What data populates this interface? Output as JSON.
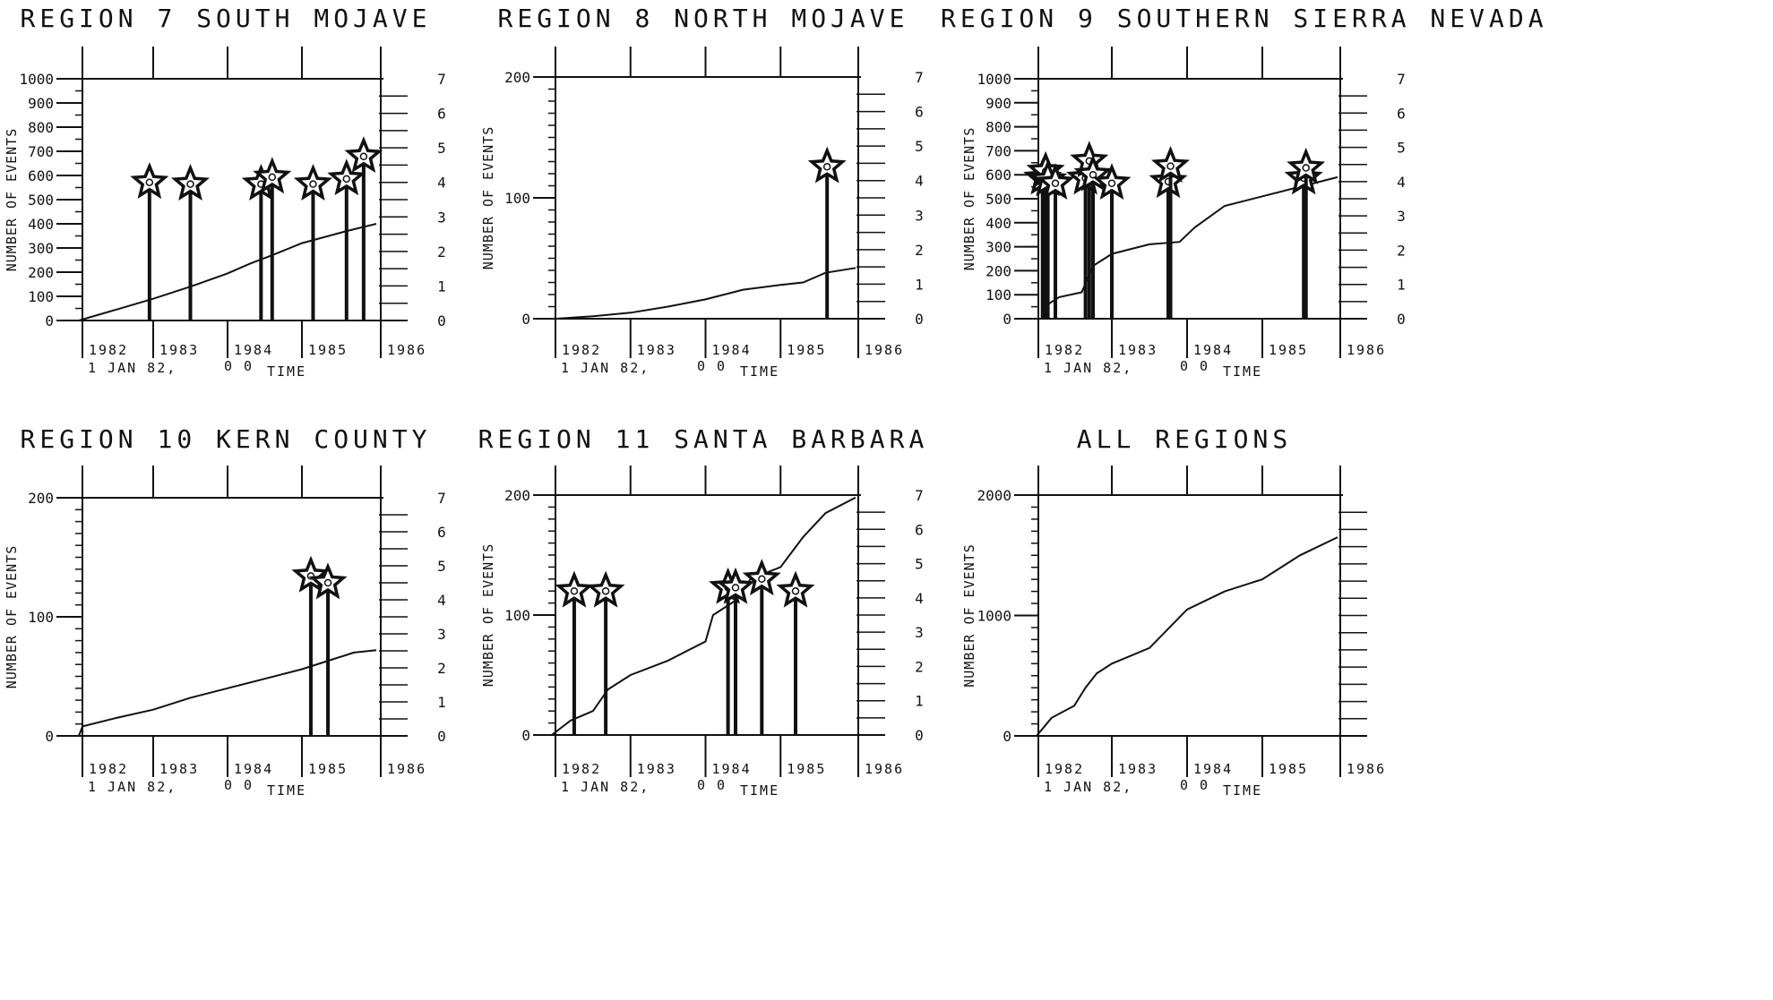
{
  "chart_data": [
    {
      "type": "line",
      "title": "REGION 7 SOUTH MOJAVE",
      "ylabel": "NUMBER OF EVENTS",
      "xlabel": "TIME",
      "start_label": "1 JAN 82,",
      "start_time": "0 0",
      "xlim": [
        1982,
        1986
      ],
      "ylim": [
        0,
        1000
      ],
      "y_ticks": [
        0,
        100,
        200,
        300,
        400,
        500,
        600,
        700,
        800,
        900,
        1000
      ],
      "x_ticks": [
        1982,
        1983,
        1984,
        1985,
        1986
      ],
      "mag_ticks": [
        0,
        1,
        2,
        3,
        4,
        5,
        6,
        7
      ],
      "mag_lim": [
        0,
        7
      ],
      "series": [
        {
          "x": [
            1982.0,
            1982.5,
            1983.0,
            1983.5,
            1984.0,
            1984.3,
            1984.6,
            1985.0,
            1985.3,
            1985.6,
            1986.0
          ],
          "values": [
            0,
            45,
            90,
            140,
            195,
            235,
            270,
            320,
            345,
            370,
            400
          ]
        }
      ],
      "events": [
        {
          "x": 1982.95,
          "magnitude": 4.0
        },
        {
          "x": 1983.5,
          "magnitude": 3.95
        },
        {
          "x": 1984.45,
          "magnitude": 3.95
        },
        {
          "x": 1984.6,
          "magnitude": 4.15
        },
        {
          "x": 1985.15,
          "magnitude": 3.95
        },
        {
          "x": 1985.6,
          "magnitude": 4.1
        },
        {
          "x": 1985.83,
          "magnitude": 4.75
        }
      ]
    },
    {
      "type": "line",
      "title": "REGION 8 NORTH MOJAVE",
      "ylabel": "NUMBER OF EVENTS",
      "xlabel": "TIME",
      "start_label": "1 JAN 82,",
      "start_time": "0 0",
      "xlim": [
        1982,
        1986
      ],
      "ylim": [
        0,
        200
      ],
      "y_ticks": [
        0,
        100,
        200
      ],
      "x_ticks": [
        1982,
        1983,
        1984,
        1985,
        1986
      ],
      "mag_ticks": [
        0,
        1,
        2,
        3,
        4,
        5,
        6,
        7
      ],
      "mag_lim": [
        0,
        7
      ],
      "series": [
        {
          "x": [
            1982.0,
            1982.5,
            1983.0,
            1983.5,
            1984.0,
            1984.5,
            1985.0,
            1985.3,
            1985.6,
            1986.0
          ],
          "values": [
            0,
            2,
            5,
            10,
            16,
            24,
            28,
            30,
            38,
            42
          ]
        }
      ],
      "events": [
        {
          "x": 1985.62,
          "magnitude": 4.4
        }
      ]
    },
    {
      "type": "line",
      "title": "REGION 9 SOUTHERN SIERRA NEVADA",
      "ylabel": "NUMBER OF EVENTS",
      "xlabel": "TIME",
      "start_label": "1 JAN 82,",
      "start_time": "0 0",
      "xlim": [
        1982,
        1986
      ],
      "ylim": [
        0,
        1000
      ],
      "y_ticks": [
        0,
        100,
        200,
        300,
        400,
        500,
        600,
        700,
        800,
        900,
        1000
      ],
      "x_ticks": [
        1982,
        1983,
        1984,
        1985,
        1986
      ],
      "mag_ticks": [
        0,
        1,
        2,
        3,
        4,
        5,
        6,
        7
      ],
      "mag_lim": [
        0,
        7
      ],
      "series": [
        {
          "x": [
            1982.1,
            1982.3,
            1982.6,
            1982.75,
            1983.0,
            1983.5,
            1983.9,
            1984.1,
            1984.5,
            1985.0,
            1985.5,
            1986.0
          ],
          "values": [
            50,
            90,
            110,
            220,
            270,
            310,
            320,
            380,
            470,
            510,
            550,
            590
          ]
        }
      ],
      "events": [
        {
          "x": 1982.08,
          "magnitude": 4.1
        },
        {
          "x": 1982.12,
          "magnitude": 4.3
        },
        {
          "x": 1982.15,
          "magnitude": 4.05
        },
        {
          "x": 1982.25,
          "magnitude": 3.95
        },
        {
          "x": 1982.65,
          "magnitude": 4.1
        },
        {
          "x": 1982.7,
          "magnitude": 4.6
        },
        {
          "x": 1982.75,
          "magnitude": 4.2
        },
        {
          "x": 1983.0,
          "magnitude": 3.95
        },
        {
          "x": 1983.75,
          "magnitude": 4.0
        },
        {
          "x": 1983.78,
          "magnitude": 4.45
        },
        {
          "x": 1985.55,
          "magnitude": 4.1
        },
        {
          "x": 1985.58,
          "magnitude": 4.4
        }
      ]
    },
    {
      "type": "line",
      "title": "REGION 10 KERN COUNTY",
      "ylabel": "NUMBER OF EVENTS",
      "xlabel": "TIME",
      "start_label": "1 JAN 82,",
      "start_time": "0 0",
      "xlim": [
        1982,
        1986
      ],
      "ylim": [
        0,
        200
      ],
      "y_ticks": [
        0,
        100,
        200
      ],
      "x_ticks": [
        1982,
        1983,
        1984,
        1985,
        1986
      ],
      "mag_ticks": [
        0,
        1,
        2,
        3,
        4,
        5,
        6,
        7
      ],
      "mag_lim": [
        0,
        7
      ],
      "series": [
        {
          "x": [
            1982.0,
            1982.05,
            1982.5,
            1983.0,
            1983.5,
            1984.0,
            1984.5,
            1985.0,
            1985.3,
            1985.7,
            1986.0
          ],
          "values": [
            0,
            8,
            15,
            22,
            32,
            40,
            48,
            56,
            62,
            70,
            72
          ]
        }
      ],
      "events": [
        {
          "x": 1985.12,
          "magnitude": 4.7
        },
        {
          "x": 1985.35,
          "magnitude": 4.5
        }
      ]
    },
    {
      "type": "line",
      "title": "REGION 11 SANTA BARBARA",
      "ylabel": "NUMBER OF EVENTS",
      "xlabel": "TIME",
      "start_label": "1 JAN 82,",
      "start_time": "0 0",
      "xlim": [
        1982,
        1986
      ],
      "ylim": [
        0,
        200
      ],
      "y_ticks": [
        0,
        100,
        200
      ],
      "x_ticks": [
        1982,
        1983,
        1984,
        1985,
        1986
      ],
      "mag_ticks": [
        0,
        1,
        2,
        3,
        4,
        5,
        6,
        7
      ],
      "mag_lim": [
        0,
        7
      ],
      "series": [
        {
          "x": [
            1981.95,
            1982.2,
            1982.5,
            1982.7,
            1983.0,
            1983.5,
            1984.0,
            1984.1,
            1984.4,
            1984.6,
            1985.0,
            1985.3,
            1985.6,
            1986.0
          ],
          "values": [
            0,
            12,
            20,
            38,
            50,
            62,
            78,
            100,
            112,
            130,
            140,
            165,
            185,
            198
          ]
        }
      ],
      "events": [
        {
          "x": 1982.25,
          "magnitude": 4.2
        },
        {
          "x": 1982.67,
          "magnitude": 4.2
        },
        {
          "x": 1984.3,
          "magnitude": 4.3
        },
        {
          "x": 1984.4,
          "magnitude": 4.3
        },
        {
          "x": 1984.75,
          "magnitude": 4.55
        },
        {
          "x": 1985.2,
          "magnitude": 4.2
        }
      ]
    },
    {
      "type": "line",
      "title": "ALL REGIONS",
      "ylabel": "NUMBER OF EVENTS",
      "xlabel": "TIME",
      "start_label": "1 JAN 82,",
      "start_time": "0 0",
      "xlim": [
        1982,
        1986
      ],
      "ylim": [
        0,
        2000
      ],
      "y_ticks": [
        0,
        1000,
        2000
      ],
      "x_ticks": [
        1982,
        1983,
        1984,
        1985,
        1986
      ],
      "mag_ticks": [],
      "mag_lim": [
        0,
        7
      ],
      "series": [
        {
          "x": [
            1982.0,
            1982.2,
            1982.5,
            1982.65,
            1982.8,
            1983.0,
            1983.5,
            1984.0,
            1984.5,
            1985.0,
            1985.5,
            1986.0
          ],
          "values": [
            0,
            150,
            250,
            400,
            520,
            600,
            730,
            1050,
            1200,
            1300,
            1500,
            1650
          ]
        }
      ],
      "events": []
    }
  ]
}
